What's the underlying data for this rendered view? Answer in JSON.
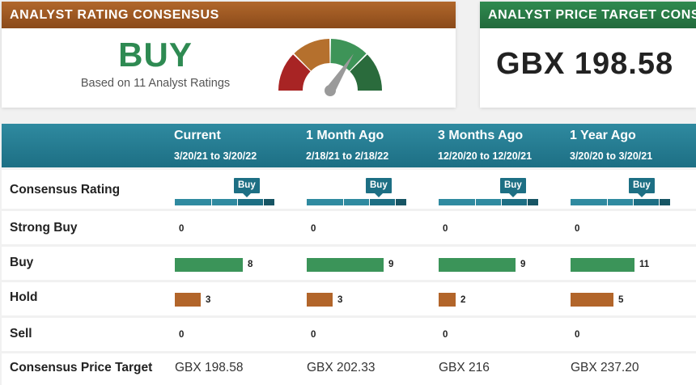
{
  "consensus_card": {
    "title": "ANALYST RATING CONSENSUS",
    "rating": "BUY",
    "subtitle": "Based on 11 Analyst Ratings",
    "gauge_colors": [
      "#a82424",
      "#b5702d",
      "#3e9458",
      "#2a6b3c"
    ],
    "needle_color": "#9a9a9a"
  },
  "target_card": {
    "title": "ANALYST PRICE TARGET CONSENSUS",
    "value": "GBX 198.58"
  },
  "colors": {
    "brown": "#b2652a",
    "green": "#3b9459",
    "teal": "#1d6f84"
  },
  "table": {
    "columns": [
      {
        "period": "Current",
        "range": "3/20/21 to 3/20/22"
      },
      {
        "period": "1 Month Ago",
        "range": "2/18/21 to 2/18/22"
      },
      {
        "period": "3 Months Ago",
        "range": "12/20/20 to 12/20/21"
      },
      {
        "period": "1 Year Ago",
        "range": "3/20/20 to 3/20/21"
      }
    ],
    "rows": {
      "consensus_rating": {
        "label": "Consensus Rating",
        "values": [
          "Buy",
          "Buy",
          "Buy",
          "Buy"
        ]
      },
      "strong_buy": {
        "label": "Strong Buy",
        "values": [
          "0",
          "0",
          "0",
          "0"
        ]
      },
      "buy": {
        "label": "Buy",
        "values": [
          "8",
          "9",
          "9",
          "11"
        ]
      },
      "hold": {
        "label": "Hold",
        "values": [
          "3",
          "3",
          "2",
          "5"
        ]
      },
      "sell": {
        "label": "Sell",
        "values": [
          "0",
          "0",
          "0",
          "0"
        ]
      },
      "price_target": {
        "label": "Consensus Price Target",
        "values": [
          "GBX 198.58",
          "GBX 202.33",
          "GBX 216",
          "GBX 237.20"
        ]
      }
    },
    "rating_scale_colors": [
      "#2f8aa0",
      "#2f8aa0",
      "#1d6f84",
      "#175564"
    ]
  }
}
